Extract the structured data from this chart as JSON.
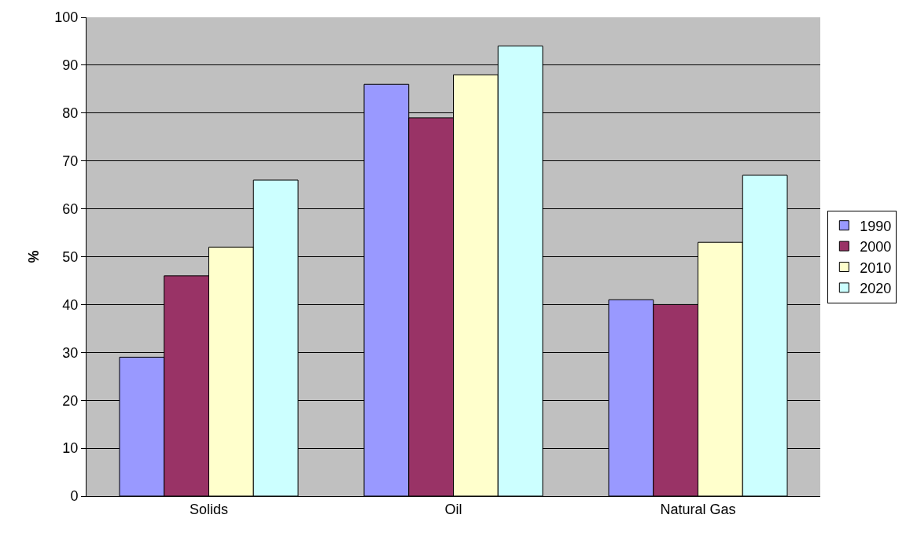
{
  "chart_data": {
    "type": "bar",
    "ylabel": "%",
    "categories": [
      "Solids",
      "Oil",
      "Natural Gas"
    ],
    "series": [
      {
        "name": "1990",
        "color": "#9999ff",
        "values": [
          29,
          86,
          41
        ]
      },
      {
        "name": "2000",
        "color": "#993366",
        "values": [
          46,
          79,
          40
        ]
      },
      {
        "name": "2010",
        "color": "#ffffcc",
        "values": [
          52,
          88,
          53
        ]
      },
      {
        "name": "2020",
        "color": "#ccffff",
        "values": [
          66,
          94,
          67
        ]
      }
    ],
    "ylim": [
      0,
      100
    ],
    "yticks": [
      0,
      10,
      20,
      30,
      40,
      50,
      60,
      70,
      80,
      90,
      100
    ],
    "grid": "y",
    "legend": "right"
  }
}
